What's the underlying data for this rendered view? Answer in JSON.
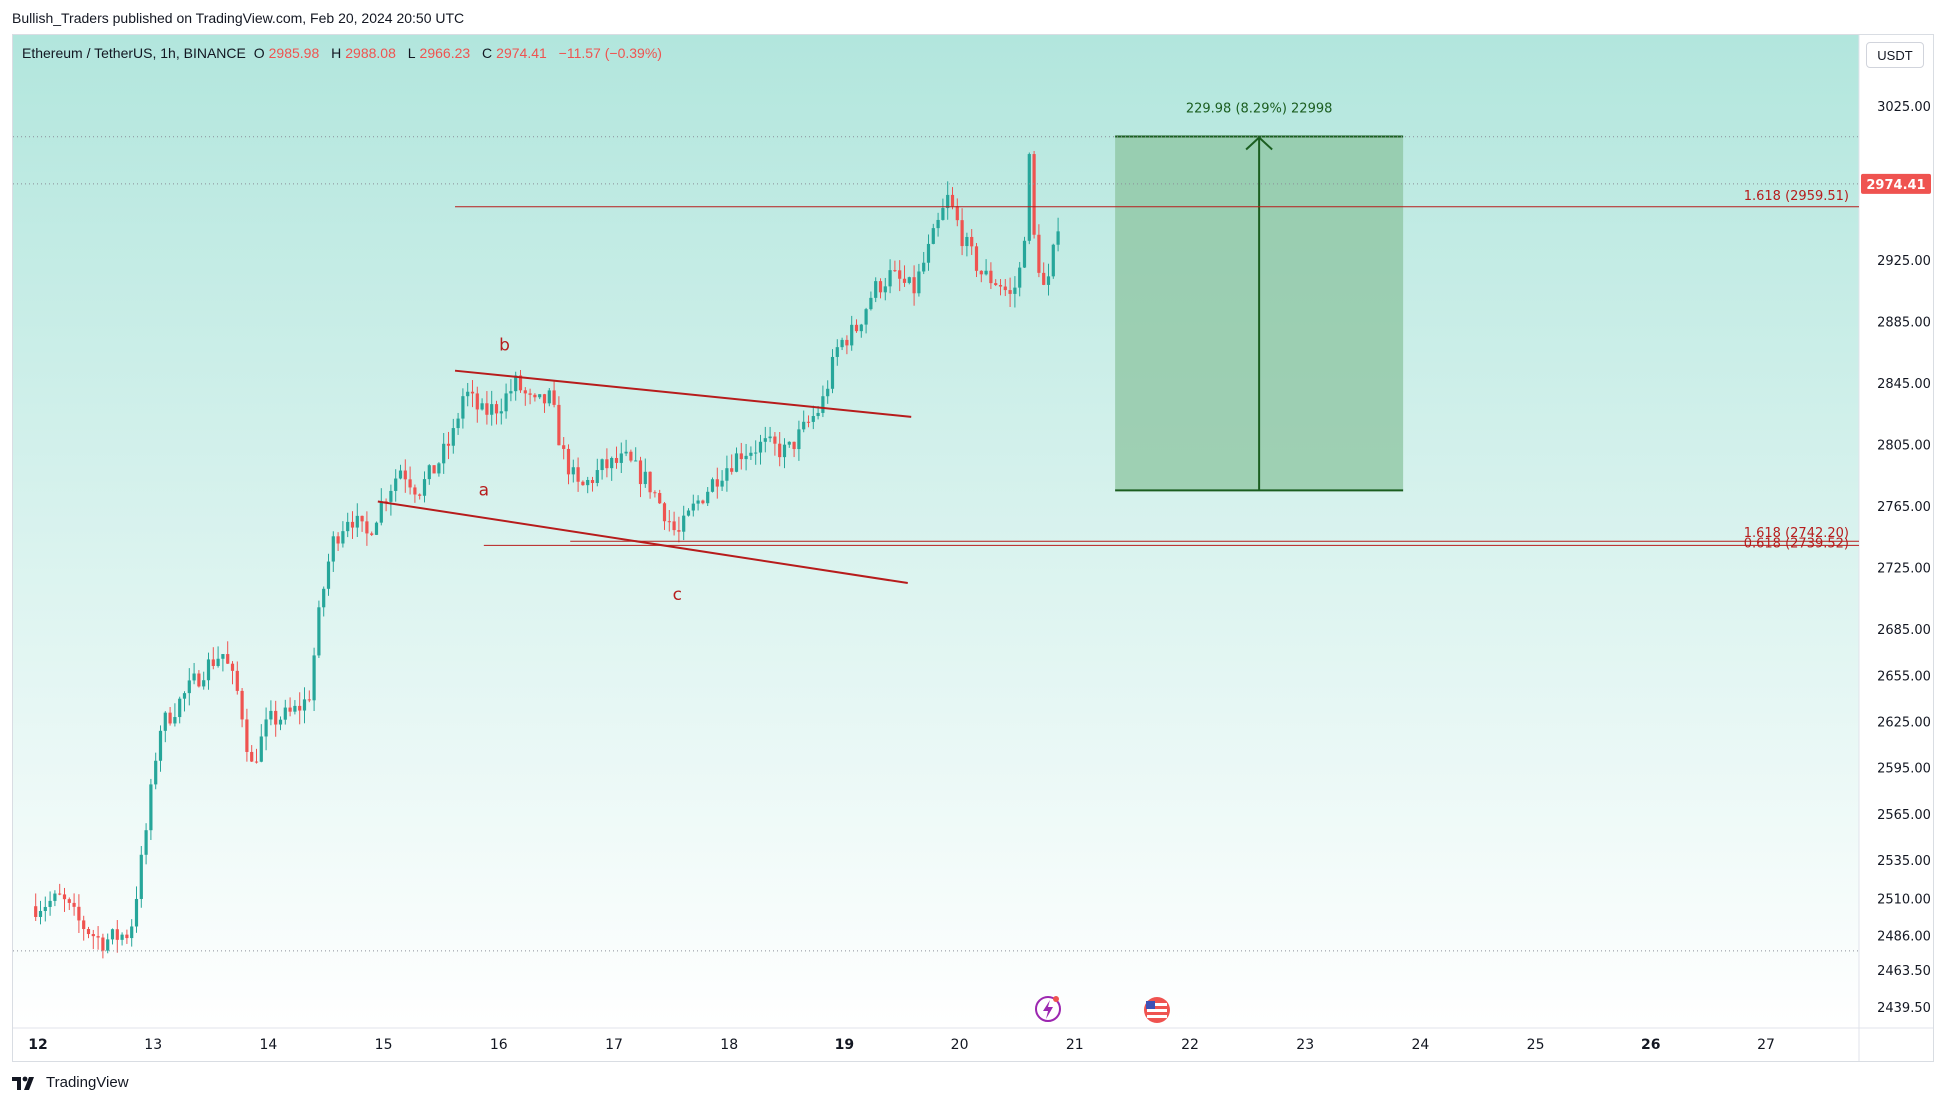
{
  "header": {
    "publisher": "Bullish_Traders published on TradingView.com, Feb 20, 2024 20:50 UTC"
  },
  "legend": {
    "symbol": "Ethereum / TetherUS, 1h, BINANCE",
    "o_label": "O",
    "o_value": "2985.98",
    "h_label": "H",
    "h_value": "2988.08",
    "l_label": "L",
    "l_value": "2966.23",
    "c_label": "C",
    "c_value": "2974.41",
    "change": "−11.57 (−0.39%)"
  },
  "currency_button": "USDT",
  "footer": {
    "brand": "TradingView"
  },
  "colors": {
    "up": "#26a69a",
    "down": "#ef5350",
    "bg_top": "#b2e6dd",
    "bg_bottom": "#ffffff",
    "annotation": "#b71c1c",
    "target_box": "#8cc4a0",
    "target_line": "#1b5e20"
  },
  "chart_data": {
    "type": "candlestick",
    "title": "Ethereum / TetherUS, 1h, BINANCE",
    "ylim": [
      2420,
      3060
    ],
    "y_ticks": [
      "3025.00",
      "2925.00",
      "2885.00",
      "2845.00",
      "2805.00",
      "2765.00",
      "2725.00",
      "2685.00",
      "2655.00",
      "2625.00",
      "2595.00",
      "2565.00",
      "2535.00",
      "2510.00",
      "2486.00",
      "2463.50",
      "2439.50"
    ],
    "x_ticks": [
      {
        "label": "12",
        "day": 12,
        "bold": true
      },
      {
        "label": "13",
        "day": 13,
        "bold": false
      },
      {
        "label": "14",
        "day": 14,
        "bold": false
      },
      {
        "label": "15",
        "day": 15,
        "bold": false
      },
      {
        "label": "16",
        "day": 16,
        "bold": false
      },
      {
        "label": "17",
        "day": 17,
        "bold": false
      },
      {
        "label": "18",
        "day": 18,
        "bold": false
      },
      {
        "label": "19",
        "day": 19,
        "bold": true
      },
      {
        "label": "20",
        "day": 20,
        "bold": false
      },
      {
        "label": "21",
        "day": 21,
        "bold": false
      },
      {
        "label": "22",
        "day": 22,
        "bold": false
      },
      {
        "label": "23",
        "day": 23,
        "bold": false
      },
      {
        "label": "24",
        "day": 24,
        "bold": false
      },
      {
        "label": "25",
        "day": 25,
        "bold": false
      },
      {
        "label": "26",
        "day": 26,
        "bold": true
      },
      {
        "label": "27",
        "day": 27,
        "bold": false
      }
    ],
    "price_path": [
      [
        11.98,
        2505
      ],
      [
        12.2,
        2510
      ],
      [
        12.35,
        2495
      ],
      [
        12.55,
        2482
      ],
      [
        12.8,
        2488
      ],
      [
        12.88,
        2525
      ],
      [
        12.95,
        2560
      ],
      [
        13.05,
        2620
      ],
      [
        13.25,
        2640
      ],
      [
        13.45,
        2660
      ],
      [
        13.6,
        2670
      ],
      [
        13.75,
        2640
      ],
      [
        13.85,
        2595
      ],
      [
        14.0,
        2625
      ],
      [
        14.2,
        2630
      ],
      [
        14.35,
        2640
      ],
      [
        14.45,
        2700
      ],
      [
        14.55,
        2740
      ],
      [
        14.7,
        2760
      ],
      [
        14.85,
        2745
      ],
      [
        15.0,
        2770
      ],
      [
        15.15,
        2790
      ],
      [
        15.3,
        2775
      ],
      [
        15.45,
        2790
      ],
      [
        15.6,
        2810
      ],
      [
        15.7,
        2840
      ],
      [
        15.85,
        2825
      ],
      [
        16.0,
        2830
      ],
      [
        16.15,
        2845
      ],
      [
        16.3,
        2830
      ],
      [
        16.45,
        2835
      ],
      [
        16.55,
        2800
      ],
      [
        16.7,
        2775
      ],
      [
        16.9,
        2790
      ],
      [
        17.1,
        2795
      ],
      [
        17.3,
        2780
      ],
      [
        17.45,
        2760
      ],
      [
        17.55,
        2745
      ],
      [
        17.7,
        2765
      ],
      [
        17.9,
        2785
      ],
      [
        18.1,
        2800
      ],
      [
        18.3,
        2805
      ],
      [
        18.5,
        2800
      ],
      [
        18.65,
        2815
      ],
      [
        18.8,
        2830
      ],
      [
        18.95,
        2870
      ],
      [
        19.1,
        2880
      ],
      [
        19.25,
        2905
      ],
      [
        19.4,
        2915
      ],
      [
        19.6,
        2905
      ],
      [
        19.75,
        2935
      ],
      [
        19.9,
        2965
      ],
      [
        20.05,
        2935
      ],
      [
        20.2,
        2915
      ],
      [
        20.35,
        2910
      ],
      [
        20.45,
        2900
      ],
      [
        20.55,
        2925
      ],
      [
        20.6,
        2995
      ],
      [
        20.65,
        2935
      ],
      [
        20.75,
        2900
      ],
      [
        20.85,
        2945
      ],
      [
        20.88,
        2975
      ]
    ],
    "price_lines": [
      {
        "value": 3005,
        "dotted": true
      },
      {
        "value": 2974.41,
        "dotted": true
      },
      {
        "value": 2476,
        "dotted": true
      }
    ],
    "current_price": "2974.41",
    "fib_levels": [
      {
        "label": "1.618 (2959.51)",
        "value": 2959.51,
        "from_day": 15.62
      },
      {
        "label": "1.618 (2742.20)",
        "value": 2742.2,
        "from_day": 16.62
      },
      {
        "label": "0.618 (2739.52)",
        "value": 2739.52,
        "from_day": 15.87
      }
    ],
    "channel_lines": [
      {
        "from": [
          15.62,
          2853
        ],
        "to": [
          19.58,
          2823
        ]
      },
      {
        "from": [
          14.95,
          2768
        ],
        "to": [
          19.55,
          2715
        ]
      }
    ],
    "wave_labels": [
      {
        "text": "b",
        "day": 16.05,
        "value": 2866
      },
      {
        "text": "a",
        "day": 15.87,
        "value": 2772
      },
      {
        "text": "c",
        "day": 17.55,
        "value": 2704
      }
    ],
    "target": {
      "from_day": 21.35,
      "to_day": 23.85,
      "top": 3005.2,
      "bottom": 2775.2,
      "arrow_day": 22.6,
      "label": "229.98 (8.29%) 22998"
    }
  }
}
